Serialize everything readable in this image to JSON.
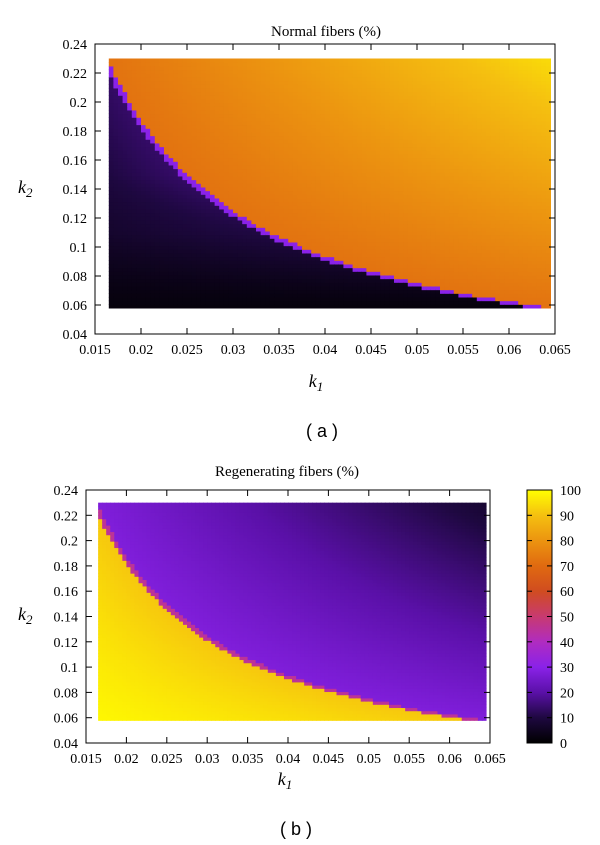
{
  "chart_data": [
    {
      "type": "heatmap",
      "title": "Normal fibers (%)",
      "xlabel": "k",
      "xlabel_sub": "1",
      "ylabel": "k",
      "ylabel_sub": "2",
      "caption": "( a )",
      "xlim": [
        0.015,
        0.065
      ],
      "ylim": [
        0.04,
        0.24
      ],
      "x_ticks": [
        "0.015",
        "0.02",
        "0.025",
        "0.03",
        "0.035",
        "0.04",
        "0.045",
        "0.05",
        "0.055",
        "0.06",
        "0.065"
      ],
      "y_ticks": [
        "0.04",
        "0.06",
        "0.08",
        "0.1",
        "0.12",
        "0.14",
        "0.16",
        "0.18",
        "0.2",
        "0.22",
        "0.24"
      ],
      "data_extent": {
        "x": [
          0.0165,
          0.0645
        ],
        "y": [
          0.058,
          0.23
        ]
      },
      "boundary": "k1 * k2 ≈ 0.0037 (sharp transition from ~5% below to ~75% above)",
      "samples": [
        {
          "k1": 0.017,
          "k2": 0.06,
          "value": 2
        },
        {
          "k1": 0.02,
          "k2": 0.15,
          "value": 8
        },
        {
          "k1": 0.03,
          "k2": 0.15,
          "value": 72
        },
        {
          "k1": 0.05,
          "k2": 0.2,
          "value": 88
        },
        {
          "k1": 0.064,
          "k2": 0.23,
          "value": 92
        }
      ],
      "colorscale": [
        0,
        100
      ]
    },
    {
      "type": "heatmap",
      "title": "Regenerating fibers (%)",
      "xlabel": "k",
      "xlabel_sub": "1",
      "ylabel": "k",
      "ylabel_sub": "2",
      "caption": "( b )",
      "xlim": [
        0.015,
        0.065
      ],
      "ylim": [
        0.04,
        0.24
      ],
      "x_ticks": [
        "0.015",
        "0.02",
        "0.025",
        "0.03",
        "0.035",
        "0.04",
        "0.045",
        "0.05",
        "0.055",
        "0.06",
        "0.065"
      ],
      "y_ticks": [
        "0.04",
        "0.06",
        "0.08",
        "0.1",
        "0.12",
        "0.14",
        "0.16",
        "0.18",
        "0.2",
        "0.22",
        "0.24"
      ],
      "data_extent": {
        "x": [
          0.0165,
          0.0645
        ],
        "y": [
          0.058,
          0.23
        ]
      },
      "boundary": "k1 * k2 ≈ 0.0037 (sharp transition from ~92% below to ~25% above)",
      "samples": [
        {
          "k1": 0.017,
          "k2": 0.06,
          "value": 99
        },
        {
          "k1": 0.02,
          "k2": 0.15,
          "value": 92
        },
        {
          "k1": 0.03,
          "k2": 0.15,
          "value": 26
        },
        {
          "k1": 0.05,
          "k2": 0.2,
          "value": 14
        },
        {
          "k1": 0.064,
          "k2": 0.23,
          "value": 9
        }
      ],
      "colorscale": [
        0,
        100
      ],
      "colorbar_ticks": [
        "0",
        "10",
        "20",
        "30",
        "40",
        "50",
        "60",
        "70",
        "80",
        "90",
        "100"
      ]
    }
  ]
}
